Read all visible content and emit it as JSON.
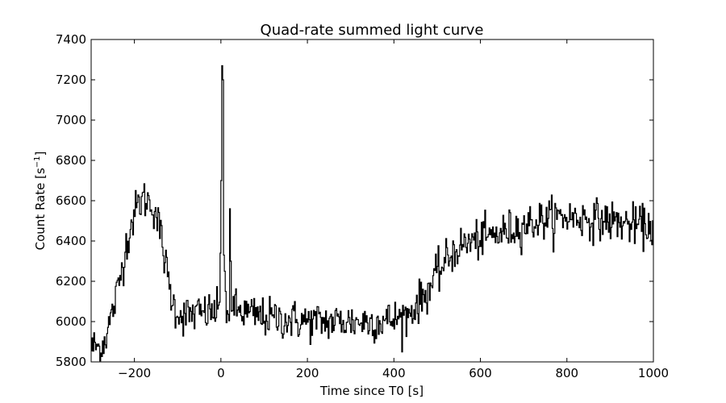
{
  "chart_data": {
    "type": "line",
    "title": "Quad-rate summed light curve",
    "xlabel": "Time since T0 [s]",
    "ylabel_text": "Count Rate [s",
    "ylabel_sup": "−1",
    "ylabel_close": "]",
    "xlim": [
      -300,
      1000
    ],
    "ylim": [
      5800,
      7400
    ],
    "xticks": [
      -200,
      0,
      200,
      400,
      600,
      800,
      1000
    ],
    "yticks": [
      5800,
      6000,
      6200,
      6400,
      6600,
      6800,
      7000,
      7200,
      7400
    ],
    "xtick_labels": [
      "−200",
      "0",
      "200",
      "400",
      "600",
      "800",
      "1000"
    ],
    "ytick_labels": [
      "5800",
      "6000",
      "6200",
      "6400",
      "6600",
      "6800",
      "7000",
      "7200",
      "7400"
    ],
    "grid": false,
    "line_color": "#000000",
    "series": [
      {
        "step": 2,
        "x": [
          -300,
          1000
        ],
        "profile": [
          [
            -300,
            5870
          ],
          [
            -290,
            5880
          ],
          [
            -280,
            5860
          ],
          [
            -270,
            5910
          ],
          [
            -260,
            5980
          ],
          [
            -250,
            6060
          ],
          [
            -240,
            6150
          ],
          [
            -230,
            6260
          ],
          [
            -220,
            6380
          ],
          [
            -210,
            6470
          ],
          [
            -200,
            6540
          ],
          [
            -190,
            6590
          ],
          [
            -180,
            6610
          ],
          [
            -170,
            6600
          ],
          [
            -160,
            6580
          ],
          [
            -150,
            6530
          ],
          [
            -140,
            6430
          ],
          [
            -130,
            6300
          ],
          [
            -120,
            6170
          ],
          [
            -110,
            6080
          ],
          [
            -100,
            6050
          ],
          [
            -90,
            6030
          ],
          [
            -80,
            6030
          ],
          [
            -60,
            6040
          ],
          [
            -40,
            6040
          ],
          [
            -20,
            6050
          ],
          [
            -10,
            6050
          ],
          [
            0,
            6060
          ],
          [
            30,
            6060
          ],
          [
            60,
            6040
          ],
          [
            100,
            6020
          ],
          [
            150,
            6010
          ],
          [
            200,
            6000
          ],
          [
            250,
            6000
          ],
          [
            300,
            6000
          ],
          [
            350,
            6000
          ],
          [
            400,
            6010
          ],
          [
            430,
            6030
          ],
          [
            450,
            6080
          ],
          [
            470,
            6130
          ],
          [
            490,
            6200
          ],
          [
            510,
            6270
          ],
          [
            530,
            6330
          ],
          [
            550,
            6370
          ],
          [
            570,
            6390
          ],
          [
            600,
            6410
          ],
          [
            650,
            6440
          ],
          [
            700,
            6480
          ],
          [
            750,
            6510
          ],
          [
            800,
            6520
          ],
          [
            850,
            6510
          ],
          [
            900,
            6500
          ],
          [
            950,
            6480
          ],
          [
            1000,
            6470
          ]
        ],
        "noise_amplitude": 90,
        "spikes": [
          [
            -2,
            6340
          ],
          [
            0,
            6700
          ],
          [
            2,
            7270
          ],
          [
            4,
            7200
          ],
          [
            6,
            6330
          ],
          [
            8,
            6250
          ],
          [
            10,
            6150
          ],
          [
            20,
            6560
          ],
          [
            22,
            6300
          ]
        ]
      }
    ]
  }
}
